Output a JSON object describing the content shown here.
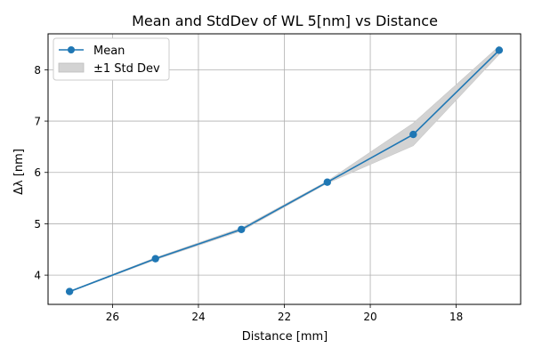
{
  "chart_data": {
    "type": "line",
    "title": "Mean and StdDev of WL 5[nm] vs Distance",
    "xlabel": "Distance [mm]",
    "ylabel": "Δλ [nm]",
    "xlim": [
      27.5,
      16.5
    ],
    "ylim": [
      3.43,
      8.7
    ],
    "x_inverted": true,
    "grid": true,
    "x_ticks": [
      26,
      24,
      22,
      20,
      18
    ],
    "y_ticks": [
      4,
      5,
      6,
      7,
      8
    ],
    "legend_position": "top-left",
    "x": [
      27,
      25,
      23,
      21,
      19,
      17
    ],
    "series": [
      {
        "name": "Mean",
        "values": [
          3.68,
          4.32,
          4.89,
          5.81,
          6.74,
          8.38
        ],
        "color": "#1f77b4",
        "marker": "circle"
      }
    ],
    "band": {
      "name": "±1 Std Dev",
      "lower": [
        3.67,
        4.3,
        4.86,
        5.79,
        6.52,
        8.3
      ],
      "upper": [
        3.69,
        4.34,
        4.92,
        5.83,
        6.96,
        8.46
      ],
      "color": "#d3d3d3"
    }
  }
}
